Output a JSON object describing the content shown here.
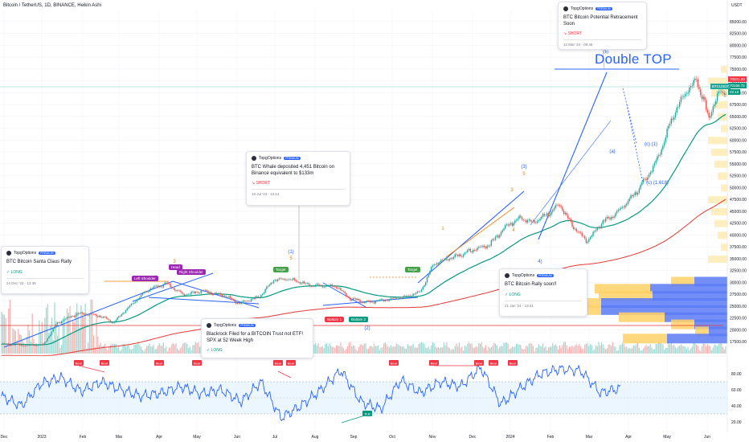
{
  "header": {
    "title": "Bitcoin / TetherUS, 1D, BINANCE, Heikin Ashi",
    "currency": "USDT"
  },
  "price_axis": {
    "ticks": [
      "85000.00",
      "82500.00",
      "80000.00",
      "77500.00",
      "75000.00",
      "72500.00",
      "70000.00",
      "67500.00",
      "65000.00",
      "62500.00",
      "60000.00",
      "57500.00",
      "55000.00",
      "52500.00",
      "50000.00",
      "47500.00",
      "45000.00",
      "42500.00",
      "40000.00",
      "37500.00",
      "35000.00",
      "32500.00",
      "30000.00",
      "27500.00",
      "25000.00",
      "22500.00",
      "20000.00",
      "17500.00"
    ],
    "last_price_label": "70241.20",
    "price2_label": "70166.72",
    "countdown": "02:10",
    "symbol_tag": "BTCUSDT"
  },
  "rsi_axis": {
    "ticks": [
      "80.00",
      "60.00",
      "40.00",
      "20.00"
    ]
  },
  "time_axis": {
    "labels": [
      "Dec",
      "2023",
      "Feb",
      "Mar",
      "Apr",
      "May",
      "Jun",
      "Jul",
      "Aug",
      "Sep",
      "Oct",
      "Nov",
      "Dec",
      "2024",
      "Feb",
      "Mar",
      "Apr",
      "May",
      "Jun"
    ]
  },
  "cards": [
    {
      "brand": "TopgOptions",
      "badge": "PREMIUM",
      "title": "BTC Bitcoin Santa Claus Rally",
      "signal": "LONG",
      "signal_type": "long",
      "date": "24 Dec '22 - 13:39"
    },
    {
      "brand": "TopgOptions",
      "badge": "PREMIUM",
      "title": "BTC Whale deposited 4,451 Bitcoin on Binance equivalent to $133m",
      "signal": "SHORT",
      "signal_type": "short",
      "date": "19 Jul '23 - 13:14"
    },
    {
      "brand": "TopgOptions",
      "badge": "PREMIUM",
      "title": "Blackrock Filed for a BITCOIN Trust not ETF! SPX at 52 Week High",
      "signal": "LONG",
      "signal_type": "long",
      "date": ""
    },
    {
      "brand": "TopgOptions",
      "badge": "PREMIUM",
      "title": "BTC Bitcoin Rally soon!!",
      "signal": "LONG",
      "signal_type": "long",
      "date": "21 Jan '24 - 13:41"
    },
    {
      "brand": "TopgOptions",
      "badge": "PREMIUM",
      "title": "BTC Bitcoin Potential Retracement Soon",
      "signal": "SHORT",
      "signal_type": "short",
      "date": "12 Mar '24 - 09:48"
    }
  ],
  "annotations": {
    "double_top": "Double TOP",
    "left_shoulder": "Left Shoulder",
    "head": "Head",
    "right_shoulder": "Right Shoulder",
    "target1": "Target",
    "target2": "Target",
    "bottom1": "Bottom 1",
    "bottom2": "Bottom 2",
    "wave_1": "(1)",
    "wave_1_5": "5",
    "wave_2": "(2)",
    "wave_3": "(3)",
    "wave_3_5": "5",
    "wave_3_sub": "3",
    "wave_4_sub": "4",
    "wave_4": "4)",
    "wave_1_sub": "1",
    "wave_a": "(a)",
    "wave_b": "(b)",
    "wave_c1": "(c) (1)",
    "wave_c1618": "(c) (1.618)",
    "hs_3": "3",
    "rsi_tags": [
      "Bear",
      "Bear",
      "Bear",
      "Bear",
      "Bear",
      "Bear",
      "Bear",
      "Bear",
      "Bear",
      "Bear",
      "Bear",
      "Bear",
      "Bull"
    ]
  },
  "colors": {
    "up": "#26a69a",
    "down": "#ef5350",
    "blue_line": "#2962ff",
    "ema_green": "#089981",
    "ema_red": "#e53935",
    "rsi_line": "#2962ff",
    "vp_blue": "#5b7bf5",
    "vp_yellow": "#ffd166",
    "bear": "#f23645",
    "bull": "#089981"
  },
  "chart_data": {
    "type": "candlestick",
    "title": "Bitcoin / TetherUS, 1D, BINANCE, Heikin Ashi",
    "x_range": [
      "Dec 2022",
      "Jun 2024"
    ],
    "y_range": [
      15000,
      87500
    ],
    "series": [
      {
        "name": "price",
        "x": [
          "Dec",
          "2023",
          "Feb",
          "Mar",
          "Apr",
          "May",
          "Jun",
          "Jul",
          "Aug",
          "Sep",
          "Oct",
          "Nov",
          "Dec",
          "2024",
          "Feb",
          "Mar",
          "Apr"
        ],
        "values": [
          17000,
          16800,
          23000,
          22500,
          28500,
          27500,
          27500,
          30500,
          29200,
          26000,
          27200,
          35500,
          42000,
          44500,
          43000,
          67000,
          70241.2
        ]
      }
    ],
    "rsi": {
      "range": [
        0,
        100
      ],
      "levels": [
        30,
        70
      ],
      "values": [
        52,
        40,
        68,
        75,
        58,
        70,
        60,
        52,
        56,
        64,
        55,
        60,
        45,
        70,
        25,
        40,
        60,
        84,
        45,
        36,
        72,
        56,
        70,
        64,
        88,
        42,
        62,
        80,
        86,
        84,
        56,
        62
      ]
    }
  }
}
